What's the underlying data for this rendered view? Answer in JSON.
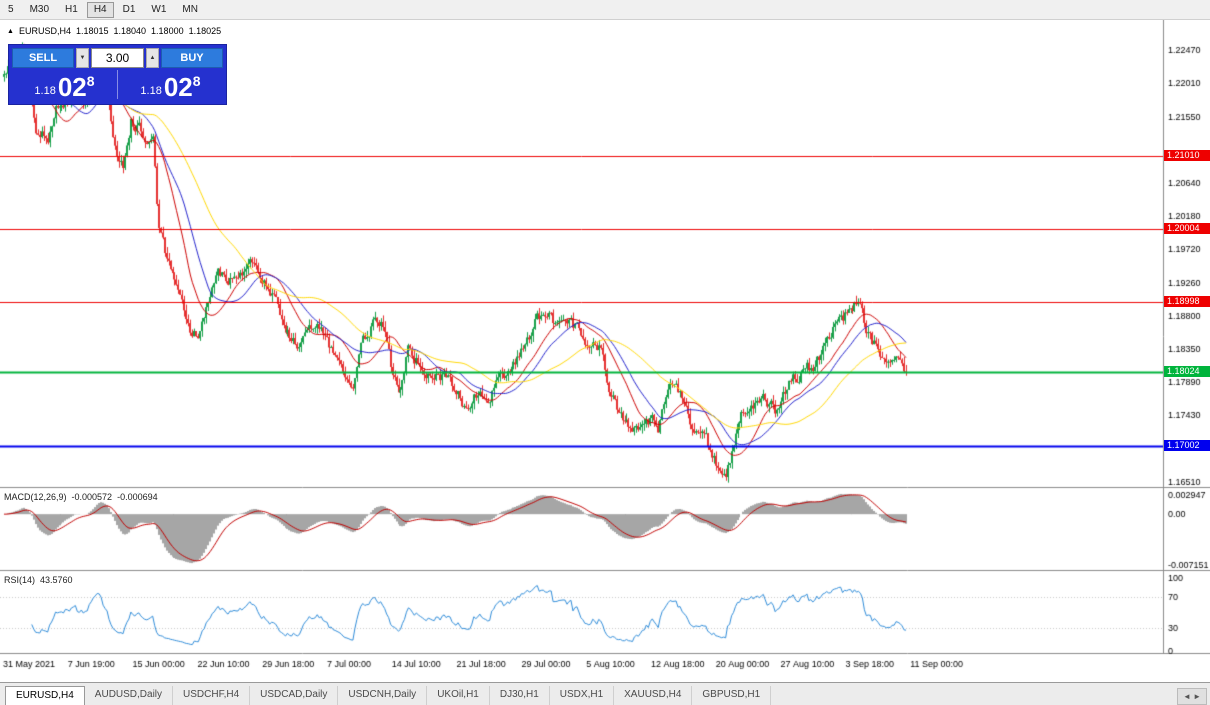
{
  "toolbar": {
    "periods": [
      {
        "label": "5"
      },
      {
        "label": "M30"
      },
      {
        "label": "H1"
      },
      {
        "label": "H4"
      },
      {
        "label": "D1"
      },
      {
        "label": "W1"
      },
      {
        "label": "MN"
      }
    ]
  },
  "chart_title": {
    "collapse_icon": "▲",
    "symbol": "EURUSD,H4",
    "open": "1.18015",
    "high": "1.18040",
    "low": "1.18000",
    "close": "1.18025"
  },
  "trade_panel": {
    "sell_label": "SELL",
    "buy_label": "BUY",
    "lot": "3.00",
    "spin_down_icon": "▼",
    "spin_up_icon": "▲",
    "sell_price": {
      "prefix": "1.18",
      "big": "02",
      "sup": "8"
    },
    "buy_price": {
      "prefix": "1.18",
      "big": "02",
      "sup": "8"
    }
  },
  "indicators": {
    "macd": {
      "name": "MACD(12,26,9)",
      "value_main": "-0.000572",
      "value_signal": "-0.000694"
    },
    "rsi": {
      "name": "RSI(14)",
      "value": "43.5760"
    }
  },
  "chart_data": {
    "type": "candlestick",
    "symbol": "EURUSD",
    "timeframe": "H4",
    "y_axis": {
      "min": 1.1651,
      "max": 1.2247,
      "ticks": [
        "1.22470",
        "1.22010",
        "1.21550",
        "1.20640",
        "1.20180",
        "1.19720",
        "1.19260",
        "1.18800",
        "1.18350",
        "1.17890",
        "1.17430",
        "1.16510"
      ]
    },
    "x_labels": [
      "31 May 2021",
      "7 Jun 19:00",
      "15 Jun 00:00",
      "22 Jun 10:00",
      "29 Jun 18:00",
      "7 Jul 00:00",
      "14 Jul 10:00",
      "21 Jul 18:00",
      "29 Jul 00:00",
      "5 Aug 10:00",
      "12 Aug 18:00",
      "20 Aug 00:00",
      "27 Aug 10:00",
      "3 Sep 18:00",
      "11 Sep 00:00"
    ],
    "hlines": [
      {
        "price": 1.2101,
        "label": "1.21010",
        "color": "#ee0000",
        "width": 1
      },
      {
        "price": 1.20004,
        "label": "1.20004",
        "color": "#ee0000",
        "width": 1
      },
      {
        "price": 1.18998,
        "label": "1.18998",
        "color": "#ee0000",
        "width": 1
      },
      {
        "price": 1.18024,
        "label": "1.18024",
        "color": "#00b43c",
        "width": 2
      },
      {
        "price": 1.17002,
        "label": "1.17002",
        "color": "#0000ee",
        "width": 2
      }
    ],
    "candle_count": 456,
    "anchors": [
      [
        0,
        1.221
      ],
      [
        6,
        1.2235
      ],
      [
        10,
        1.2248
      ],
      [
        16,
        1.214
      ],
      [
        22,
        1.2125
      ],
      [
        26,
        1.2165
      ],
      [
        34,
        1.218
      ],
      [
        42,
        1.2175
      ],
      [
        48,
        1.2235
      ],
      [
        52,
        1.219
      ],
      [
        57,
        1.2098
      ],
      [
        60,
        1.2092
      ],
      [
        64,
        1.215
      ],
      [
        68,
        1.214
      ],
      [
        72,
        1.2125
      ],
      [
        75,
        1.212
      ],
      [
        78,
        1.1998
      ],
      [
        82,
        1.1955
      ],
      [
        88,
        1.192
      ],
      [
        94,
        1.1862
      ],
      [
        98,
        1.185
      ],
      [
        102,
        1.1888
      ],
      [
        108,
        1.1935
      ],
      [
        116,
        1.1928
      ],
      [
        124,
        1.195
      ],
      [
        130,
        1.193
      ],
      [
        136,
        1.1905
      ],
      [
        142,
        1.186
      ],
      [
        148,
        1.1845
      ],
      [
        154,
        1.1862
      ],
      [
        160,
        1.1868
      ],
      [
        166,
        1.183
      ],
      [
        172,
        1.1792
      ],
      [
        176,
        1.1782
      ],
      [
        180,
        1.1838
      ],
      [
        186,
        1.1872
      ],
      [
        192,
        1.1862
      ],
      [
        196,
        1.18
      ],
      [
        200,
        1.1778
      ],
      [
        204,
        1.183
      ],
      [
        210,
        1.1812
      ],
      [
        216,
        1.1802
      ],
      [
        222,
        1.1798
      ],
      [
        228,
        1.1778
      ],
      [
        232,
        1.1756
      ],
      [
        238,
        1.1772
      ],
      [
        244,
        1.1768
      ],
      [
        250,
        1.179
      ],
      [
        256,
        1.1808
      ],
      [
        262,
        1.1832
      ],
      [
        268,
        1.1872
      ],
      [
        274,
        1.189
      ],
      [
        278,
        1.1868
      ],
      [
        284,
        1.187
      ],
      [
        290,
        1.1858
      ],
      [
        296,
        1.1838
      ],
      [
        302,
        1.1832
      ],
      [
        306,
        1.1768
      ],
      [
        312,
        1.1742
      ],
      [
        318,
        1.1722
      ],
      [
        324,
        1.1742
      ],
      [
        330,
        1.1728
      ],
      [
        336,
        1.1792
      ],
      [
        342,
        1.1772
      ],
      [
        348,
        1.1712
      ],
      [
        354,
        1.1708
      ],
      [
        360,
        1.1675
      ],
      [
        364,
        1.1668
      ],
      [
        368,
        1.1702
      ],
      [
        372,
        1.1742
      ],
      [
        378,
        1.1752
      ],
      [
        384,
        1.1768
      ],
      [
        390,
        1.1748
      ],
      [
        396,
        1.1792
      ],
      [
        402,
        1.18
      ],
      [
        408,
        1.1812
      ],
      [
        414,
        1.184
      ],
      [
        420,
        1.1872
      ],
      [
        426,
        1.1885
      ],
      [
        430,
        1.1902
      ],
      [
        434,
        1.1872
      ],
      [
        438,
        1.1842
      ],
      [
        444,
        1.1822
      ],
      [
        450,
        1.1826
      ],
      [
        455,
        1.18025
      ]
    ],
    "ma": [
      {
        "period": 18,
        "color": "#cc0000"
      },
      {
        "period": 28,
        "color": "#2222cc"
      },
      {
        "period": 55,
        "color": "#ffd700"
      }
    ],
    "colors": {
      "candle_up": "#18a04a",
      "candle_down": "#e53030",
      "macd_hist": "#a6a6a6",
      "macd_signal": "#c00000",
      "rsi_line": "#2e8bd8"
    },
    "macd_axis": {
      "top": "0.002947",
      "zero": "0.00",
      "bottom": "-0.007151"
    },
    "rsi_axis": [
      "100",
      "70",
      "30",
      "0"
    ],
    "rsi_levels": [
      70,
      30
    ]
  },
  "tabs": {
    "items": [
      "EURUSD,H4",
      "AUDUSD,Daily",
      "USDCHF,H4",
      "USDCAD,Daily",
      "USDCNH,Daily",
      "UKOil,H1",
      "DJ30,H1",
      "USDX,H1",
      "XAUUSD,H4",
      "GBPUSD,H1"
    ],
    "scroll_icon": "◄ ►"
  }
}
